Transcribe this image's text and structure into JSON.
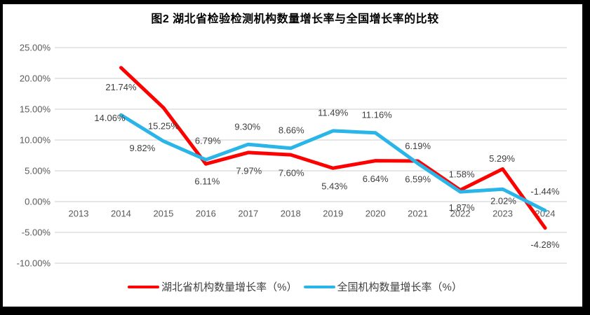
{
  "chart_data": {
    "type": "line",
    "title": "图2  湖北省检验检测机构数量增长率与全国增长率的比较",
    "categories": [
      "2013",
      "2014",
      "2015",
      "2016",
      "2017",
      "2018",
      "2019",
      "2020",
      "2021",
      "2022",
      "2023",
      "2024"
    ],
    "ylim": [
      -10,
      25
    ],
    "grid": true,
    "legend_position": "bottom",
    "y_ticks": [
      {
        "value": 25,
        "label": "25.00%"
      },
      {
        "value": 20,
        "label": "20.00%"
      },
      {
        "value": 15,
        "label": "15.00%"
      },
      {
        "value": 10,
        "label": "10.00%"
      },
      {
        "value": 5,
        "label": "5.00%"
      },
      {
        "value": 0,
        "label": "0.00%"
      },
      {
        "value": -5,
        "label": "-5.00%"
      },
      {
        "value": -10,
        "label": "-10.00%"
      }
    ],
    "series": [
      {
        "name": "湖北省机构数量增长率（%）",
        "color": "#fe0000",
        "start_category_index": 1,
        "values": [
          21.74,
          15.25,
          6.11,
          7.97,
          7.6,
          5.43,
          6.64,
          6.59,
          1.87,
          5.29,
          -4.28
        ],
        "labels": [
          "21.74%",
          "15.25%",
          "6.11%",
          "7.97%",
          "7.60%",
          "5.43%",
          "6.64%",
          "6.59%",
          "1.87%",
          "5.29%",
          "-4.28%"
        ],
        "label_offsets": [
          [
            0,
            28
          ],
          [
            0,
            26
          ],
          [
            2,
            25
          ],
          [
            1,
            26
          ],
          [
            1,
            26
          ],
          [
            2,
            26
          ],
          [
            0,
            26
          ],
          [
            0,
            26
          ],
          [
            2,
            25
          ],
          [
            -1,
            -15
          ],
          [
            0,
            24
          ]
        ]
      },
      {
        "name": "全国机构数量增长率（%）",
        "color": "#29b5e8",
        "start_category_index": 1,
        "values": [
          14.06,
          9.82,
          6.79,
          9.3,
          8.66,
          11.49,
          11.16,
          6.19,
          1.58,
          2.02,
          -1.44
        ],
        "labels": [
          "14.06%",
          "9.82%",
          "6.79%",
          "9.30%",
          "8.66%",
          "11.49%",
          "11.16%",
          "6.19%",
          "1.58%",
          "2.02%",
          "-1.44%"
        ],
        "label_offsets": [
          [
            -16,
            4
          ],
          [
            -30,
            10
          ],
          [
            3,
            -27
          ],
          [
            -1,
            -25
          ],
          [
            1,
            -26
          ],
          [
            0,
            -26
          ],
          [
            2,
            -26
          ],
          [
            0,
            -25
          ],
          [
            2,
            -25
          ],
          [
            1,
            17
          ],
          [
            0,
            -27
          ]
        ]
      }
    ],
    "colors": {
      "gridline": "#e6e6e6",
      "axis_text": "#595959",
      "data_label_text": "#3f3f3f"
    }
  }
}
